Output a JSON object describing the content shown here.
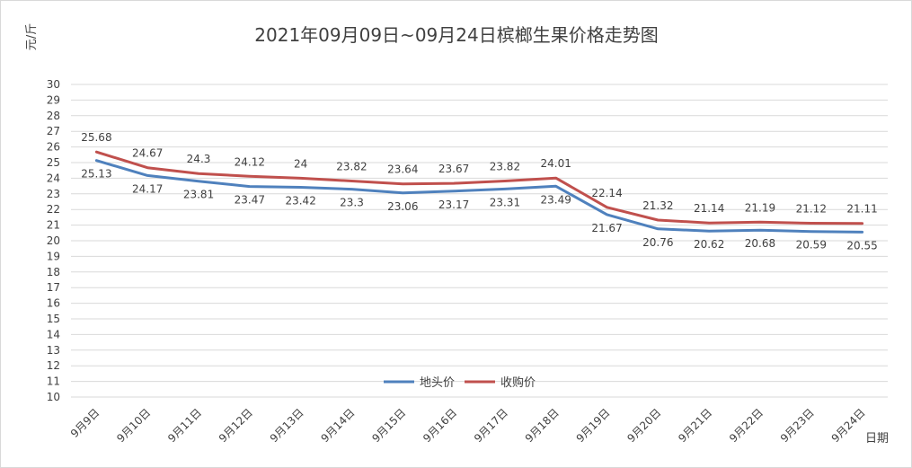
{
  "chart_data": {
    "type": "line",
    "title": "2021年09月09日~09月24日槟榔生果价格走势图",
    "xlabel": "日期",
    "ylabel": "元/斤",
    "ylim": [
      10,
      30
    ],
    "ytick_step": 1,
    "grid": true,
    "legend_position": "bottom-center",
    "categories": [
      "9月9日",
      "9月10日",
      "9月11日",
      "9月12日",
      "9月13日",
      "9月14日",
      "9月15日",
      "9月16日",
      "9月17日",
      "9月18日",
      "9月19日",
      "9月20日",
      "9月21日",
      "9月22日",
      "9月23日",
      "9月24日"
    ],
    "series": [
      {
        "name": "地头价",
        "color": "#4f81bd",
        "values": [
          25.13,
          24.17,
          23.81,
          23.47,
          23.42,
          23.3,
          23.06,
          23.17,
          23.31,
          23.49,
          21.67,
          20.76,
          20.62,
          20.68,
          20.59,
          20.55
        ]
      },
      {
        "name": "收购价",
        "color": "#c0504d",
        "values": [
          25.68,
          24.67,
          24.3,
          24.12,
          24,
          23.82,
          23.64,
          23.67,
          23.82,
          24.01,
          22.14,
          21.32,
          21.14,
          21.19,
          21.12,
          21.11
        ]
      }
    ]
  }
}
